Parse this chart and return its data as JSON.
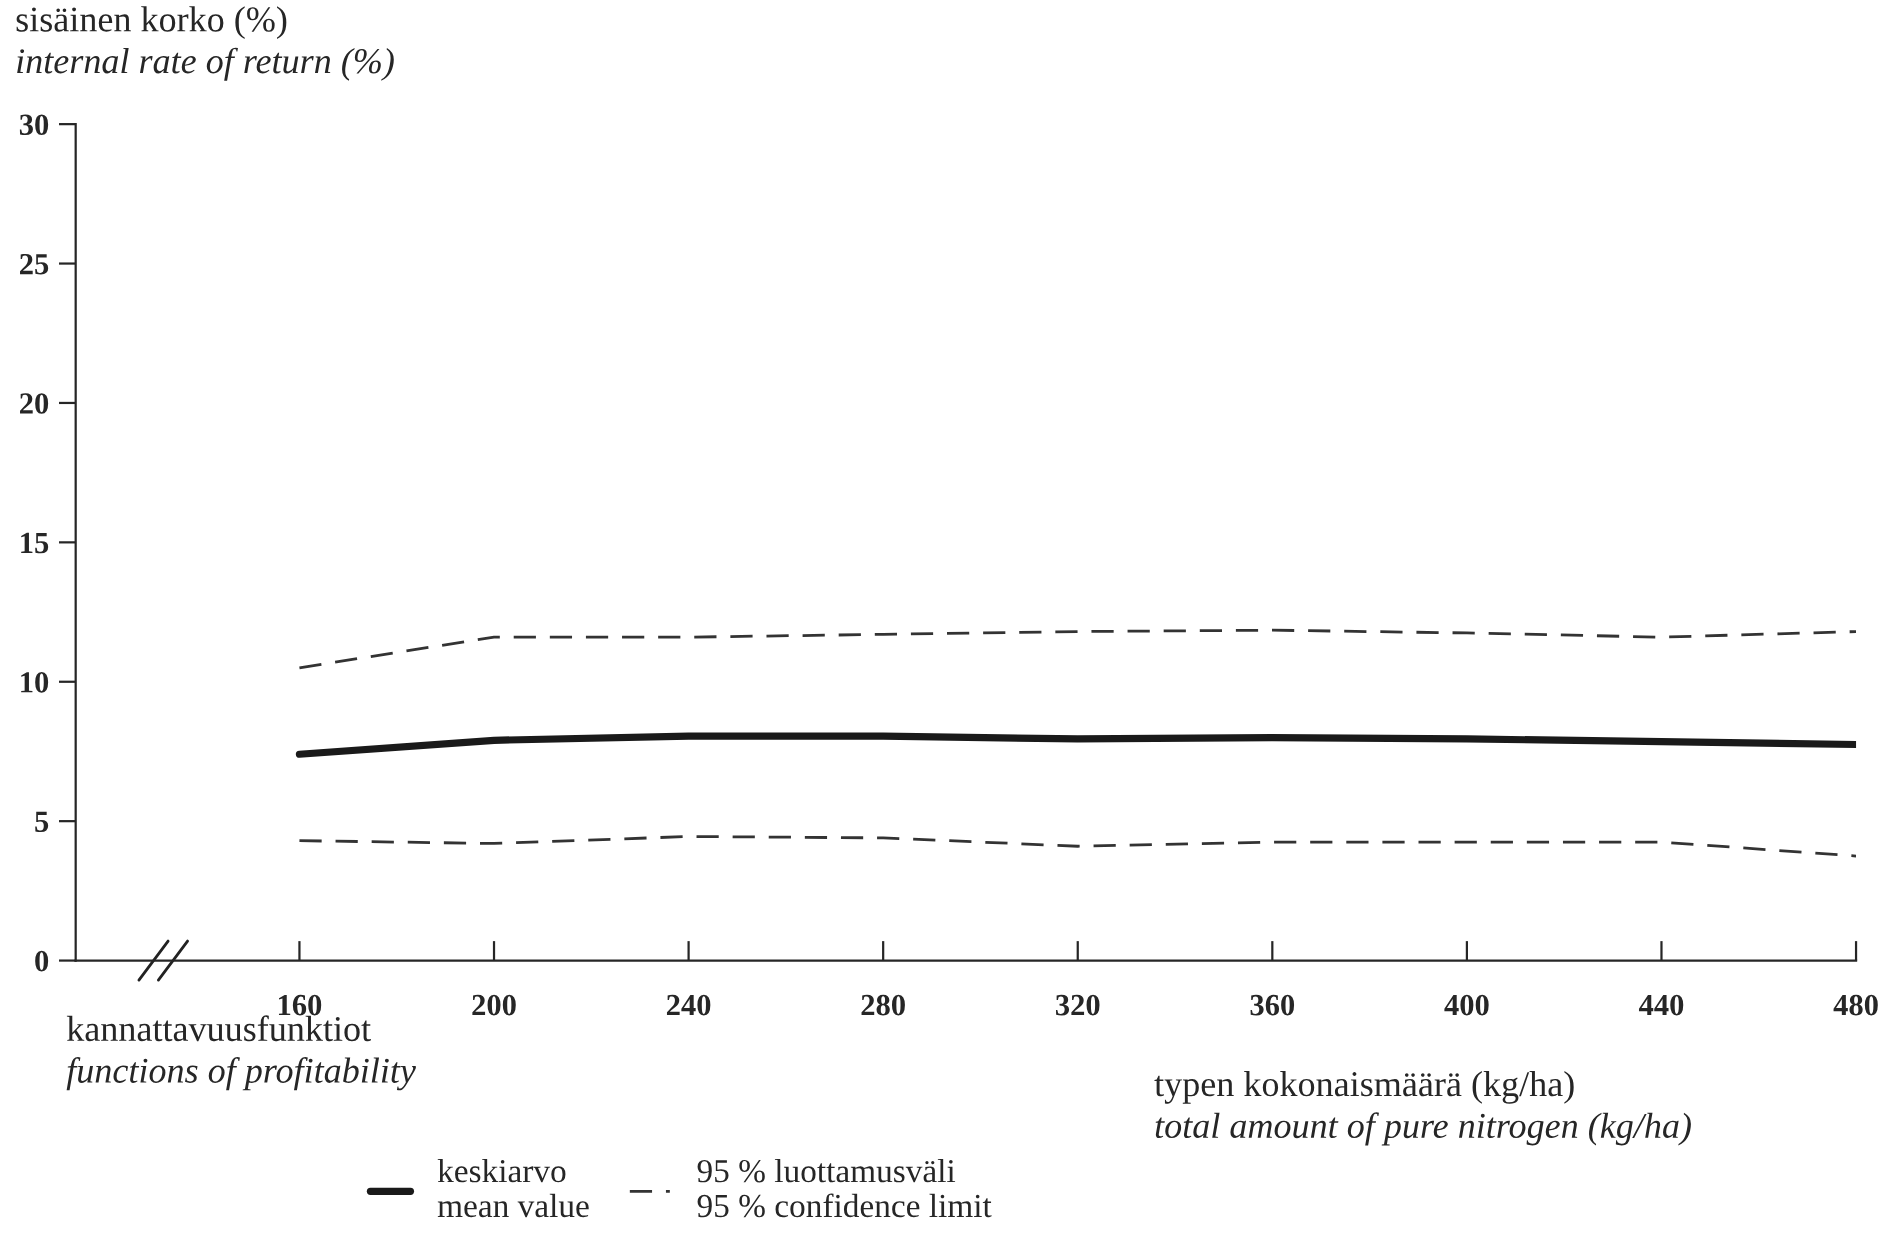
{
  "chart_data": {
    "type": "line",
    "ylabel": "sisäinen korko (%)\ninternal rate of return (%)",
    "xlabel": "typen kokonaismäärä (kg/ha)\ntotal amount of pure nitrogen (kg/ha)",
    "annotations": [
      "kannattavuusfunktiot\nfunctions of profitability"
    ],
    "x": [
      160,
      200,
      240,
      280,
      320,
      360,
      400,
      440,
      480
    ],
    "series": [
      {
        "name": "keskiarvo\nmean value",
        "color": "#1a1a1a",
        "line_style": "solid",
        "values": [
          7.4,
          7.9,
          8.05,
          8.05,
          7.95,
          8.0,
          7.95,
          7.85,
          7.75
        ]
      },
      {
        "name": "95 % luottamusväli\n95 % confidence limit",
        "color": "#333333",
        "line_style": "dashed",
        "values": [
          10.5,
          11.6,
          11.6,
          11.7,
          11.8,
          11.85,
          11.75,
          11.6,
          11.8
        ]
      },
      {
        "color": "#333333",
        "line_style": "dashed",
        "values": [
          4.3,
          4.2,
          4.45,
          4.4,
          4.1,
          4.25,
          4.25,
          4.25,
          3.75
        ]
      }
    ],
    "xlim": [
      114,
      480
    ],
    "ylim": [
      0,
      30
    ],
    "xticks": [
      160,
      200,
      240,
      280,
      320,
      360,
      400,
      440,
      480
    ],
    "yticks": [
      0,
      5,
      10,
      15,
      20,
      25,
      30
    ],
    "grid": false,
    "legend": "bottom",
    "marker": "none"
  }
}
